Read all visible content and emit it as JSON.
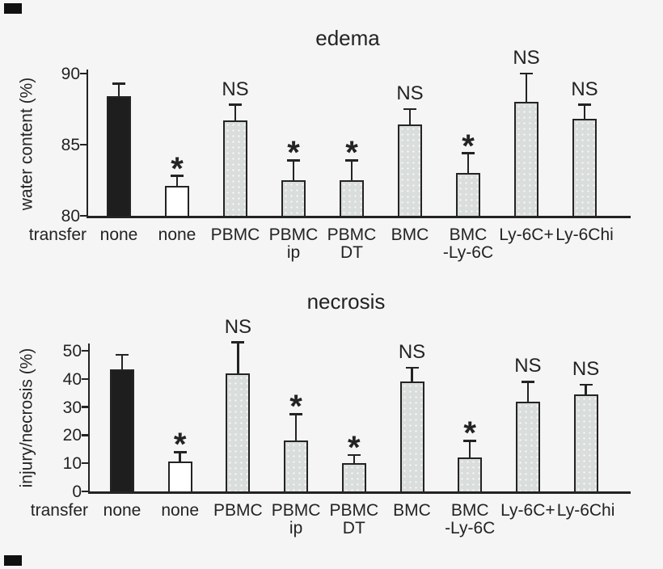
{
  "figure": {
    "background": "#f5f5f6",
    "ink": "#232323",
    "bar_colors": {
      "black": "#1e1e1e",
      "white": "#ffffff",
      "gray": "#d9dddc"
    },
    "row_label": "transfer"
  },
  "chart_data": [
    {
      "type": "bar",
      "title": "edema",
      "ylabel": "water content (%)",
      "row_label": "transfer",
      "ylim": [
        80,
        90
      ],
      "yticks": [
        90,
        85,
        80
      ],
      "grid": false,
      "error_bars": "upper",
      "categories": [
        "none",
        "none",
        "PBMC",
        "PBMC ip",
        "PBMC DT",
        "BMC",
        "BMC -Ly-6C",
        "Ly-6C+",
        "Ly-6Chi"
      ],
      "bars": [
        {
          "label_lines": [
            "none"
          ],
          "value": 88.4,
          "error": 0.9,
          "fill": "black",
          "sig": ""
        },
        {
          "label_lines": [
            "none"
          ],
          "value": 82.1,
          "error": 0.7,
          "fill": "white",
          "sig": "*"
        },
        {
          "label_lines": [
            "PBMC"
          ],
          "value": 86.7,
          "error": 1.1,
          "fill": "gray",
          "sig": "NS"
        },
        {
          "label_lines": [
            "PBMC",
            "ip"
          ],
          "value": 82.5,
          "error": 1.4,
          "fill": "gray",
          "sig": "*"
        },
        {
          "label_lines": [
            "PBMC",
            "DT"
          ],
          "value": 82.5,
          "error": 1.4,
          "fill": "gray",
          "sig": "*"
        },
        {
          "label_lines": [
            "BMC"
          ],
          "value": 86.4,
          "error": 1.1,
          "fill": "gray",
          "sig": "NS"
        },
        {
          "label_lines": [
            "BMC",
            "-Ly-6C"
          ],
          "value": 83.0,
          "error": 1.4,
          "fill": "gray",
          "sig": "*"
        },
        {
          "label_lines": [
            "Ly-6C+"
          ],
          "value": 88.0,
          "error": 2.0,
          "fill": "gray",
          "sig": "NS"
        },
        {
          "label_lines": [
            "Ly-6Chi"
          ],
          "value": 86.8,
          "error": 1.0,
          "fill": "gray",
          "sig": "NS"
        }
      ]
    },
    {
      "type": "bar",
      "title": "necrosis",
      "ylabel": "injury/necrosis (%)",
      "row_label": "transfer",
      "ylim": [
        0,
        50
      ],
      "yticks": [
        50,
        40,
        30,
        20,
        10,
        0
      ],
      "grid": false,
      "error_bars": "upper",
      "categories": [
        "none",
        "none",
        "PBMC",
        "PBMC ip",
        "PBMC DT",
        "BMC",
        "BMC -Ly-6C",
        "Ly-6C+",
        "Ly-6Chi"
      ],
      "bars": [
        {
          "label_lines": [
            "none"
          ],
          "value": 43.5,
          "error": 5.0,
          "fill": "black",
          "sig": ""
        },
        {
          "label_lines": [
            "none"
          ],
          "value": 10.5,
          "error": 3.5,
          "fill": "white",
          "sig": "*"
        },
        {
          "label_lines": [
            "PBMC"
          ],
          "value": 42.0,
          "error": 11.0,
          "fill": "gray",
          "sig": "NS"
        },
        {
          "label_lines": [
            "PBMC",
            "ip"
          ],
          "value": 18.0,
          "error": 9.5,
          "fill": "gray",
          "sig": "*"
        },
        {
          "label_lines": [
            "PBMC",
            "DT"
          ],
          "value": 10.0,
          "error": 3.0,
          "fill": "gray",
          "sig": "*"
        },
        {
          "label_lines": [
            "BMC"
          ],
          "value": 39.0,
          "error": 5.0,
          "fill": "gray",
          "sig": "NS"
        },
        {
          "label_lines": [
            "BMC",
            "-Ly-6C"
          ],
          "value": 12.0,
          "error": 6.0,
          "fill": "gray",
          "sig": "*"
        },
        {
          "label_lines": [
            "Ly-6C+"
          ],
          "value": 32.0,
          "error": 7.0,
          "fill": "gray",
          "sig": "NS"
        },
        {
          "label_lines": [
            "Ly-6Chi"
          ],
          "value": 34.5,
          "error": 3.5,
          "fill": "gray",
          "sig": "NS"
        }
      ]
    }
  ]
}
